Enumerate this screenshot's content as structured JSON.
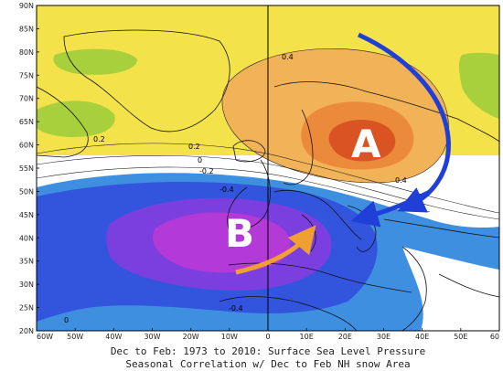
{
  "lat_labels": [
    "90N",
    "85N",
    "80N",
    "75N",
    "70N",
    "65N",
    "60N",
    "55N",
    "50N",
    "45N",
    "40N",
    "35N",
    "30N",
    "25N",
    "20N"
  ],
  "lon_labels": [
    "60W",
    "50W",
    "40W",
    "30W",
    "20W",
    "10W",
    "0",
    "10E",
    "20E",
    "30E",
    "40E",
    "50E",
    "60"
  ],
  "contour_labels": [
    "0.4",
    "0.2",
    "0.2",
    "0",
    "-0.2",
    "-0.4",
    "0.4",
    "-0.4",
    "0"
  ],
  "markers": {
    "a": "A",
    "b": "B"
  },
  "caption": {
    "line1": "Dec to Feb: 1973 to 2010: Surface Sea Level Pressure",
    "line2": "Seasonal Correlation w/ Dec to Feb NH snow Area"
  },
  "colors": {
    "pos_02": "#f4e24a",
    "pos_04": "#f2b257",
    "pos_06": "#ec8a3c",
    "pos_08": "#d95422",
    "neg_02": "#3f8fe0",
    "neg_04": "#3355dd",
    "neg_06": "#7b3fe0",
    "neg_08": "#b33ad6",
    "arrow_blue": "#1f3fd6",
    "arrow_orange": "#f0a030"
  }
}
